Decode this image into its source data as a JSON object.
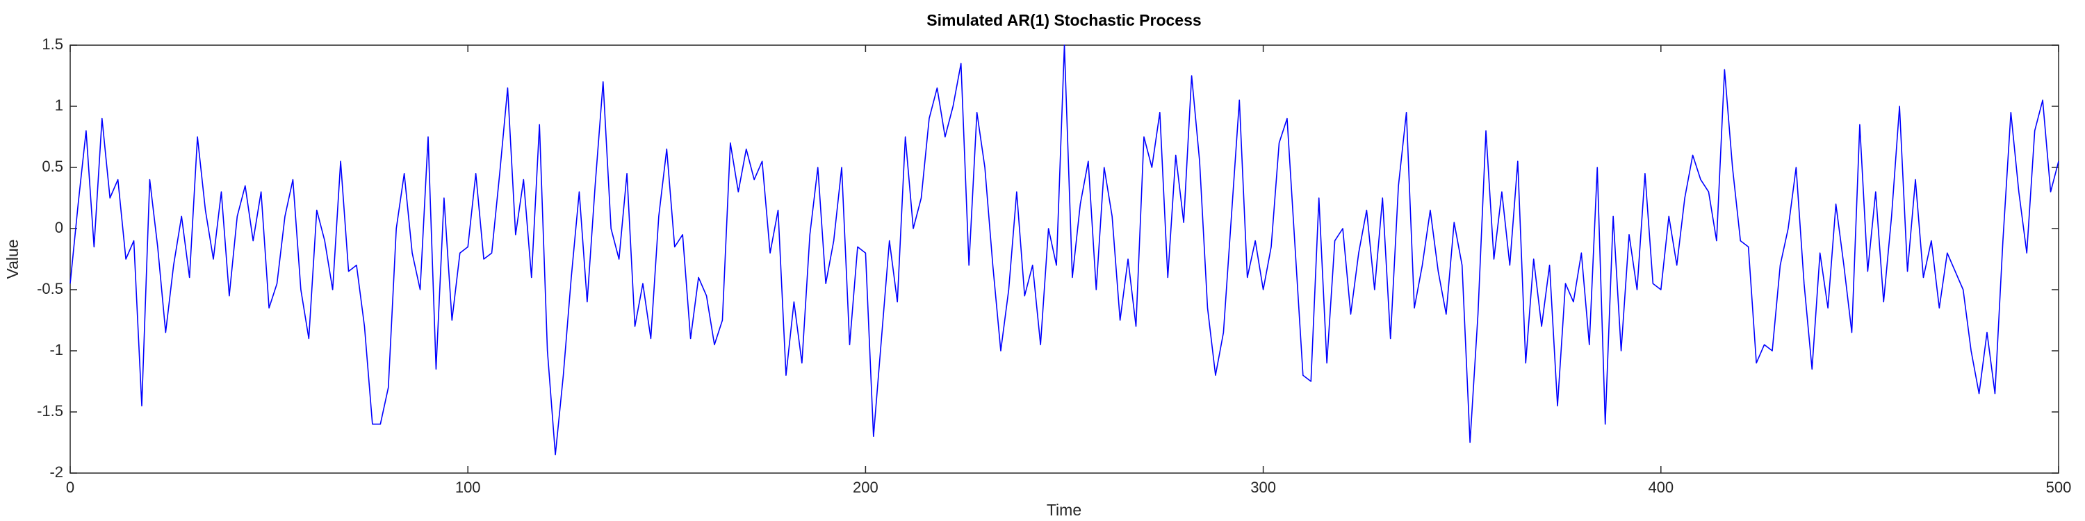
{
  "chart_data": {
    "type": "line",
    "title": "Simulated AR(1) Stochastic Process",
    "xlabel": "Time",
    "ylabel": "Value",
    "color": "#0000ff",
    "grid": false,
    "xlim": [
      0,
      500
    ],
    "ylim": [
      -2,
      1.5
    ],
    "xticks": [
      0,
      100,
      200,
      300,
      400,
      500
    ],
    "yticks": [
      -2,
      -1.5,
      -1,
      -0.5,
      0,
      0.5,
      1,
      1.5
    ],
    "x": [
      0,
      2,
      4,
      6,
      8,
      10,
      12,
      14,
      16,
      18,
      20,
      22,
      24,
      26,
      28,
      30,
      32,
      34,
      36,
      38,
      40,
      42,
      44,
      46,
      48,
      50,
      52,
      54,
      56,
      58,
      60,
      62,
      64,
      66,
      68,
      70,
      72,
      74,
      76,
      78,
      80,
      82,
      84,
      86,
      88,
      90,
      92,
      94,
      96,
      98,
      100,
      102,
      104,
      106,
      108,
      110,
      112,
      114,
      116,
      118,
      120,
      122,
      124,
      126,
      128,
      130,
      132,
      134,
      136,
      138,
      140,
      142,
      144,
      146,
      148,
      150,
      152,
      154,
      156,
      158,
      160,
      162,
      164,
      166,
      168,
      170,
      172,
      174,
      176,
      178,
      180,
      182,
      184,
      186,
      188,
      190,
      192,
      194,
      196,
      198,
      200,
      202,
      204,
      206,
      208,
      210,
      212,
      214,
      216,
      218,
      220,
      222,
      224,
      226,
      228,
      230,
      232,
      234,
      236,
      238,
      240,
      242,
      244,
      246,
      248,
      250,
      252,
      254,
      256,
      258,
      260,
      262,
      264,
      266,
      268,
      270,
      272,
      274,
      276,
      278,
      280,
      282,
      284,
      286,
      288,
      290,
      292,
      294,
      296,
      298,
      300,
      302,
      304,
      306,
      308,
      310,
      312,
      314,
      316,
      318,
      320,
      322,
      324,
      326,
      328,
      330,
      332,
      334,
      336,
      338,
      340,
      342,
      344,
      346,
      348,
      350,
      352,
      354,
      356,
      358,
      360,
      362,
      364,
      366,
      368,
      370,
      372,
      374,
      376,
      378,
      380,
      382,
      384,
      386,
      388,
      390,
      392,
      394,
      396,
      398,
      400,
      402,
      404,
      406,
      408,
      410,
      412,
      414,
      416,
      418,
      420,
      422,
      424,
      426,
      428,
      430,
      432,
      434,
      436,
      438,
      440,
      442,
      444,
      446,
      448,
      450,
      452,
      454,
      456,
      458,
      460,
      462,
      464,
      466,
      468,
      470,
      472,
      474,
      476,
      478,
      480,
      482,
      484,
      486,
      488,
      490,
      492,
      494,
      496,
      498,
      500
    ],
    "values": [
      -0.45,
      0.2,
      0.8,
      -0.15,
      0.9,
      0.25,
      0.4,
      -0.25,
      -0.1,
      -1.45,
      0.4,
      -0.15,
      -0.85,
      -0.3,
      0.1,
      -0.4,
      0.75,
      0.15,
      -0.25,
      0.3,
      -0.55,
      0.1,
      0.35,
      -0.1,
      0.3,
      -0.65,
      -0.45,
      0.1,
      0.4,
      -0.5,
      -0.9,
      0.15,
      -0.1,
      -0.5,
      0.55,
      -0.35,
      -0.3,
      -0.8,
      -1.6,
      -1.6,
      -1.3,
      0.0,
      0.45,
      -0.2,
      -0.5,
      0.75,
      -1.15,
      0.25,
      -0.75,
      -0.2,
      -0.15,
      0.45,
      -0.25,
      -0.2,
      0.45,
      1.15,
      -0.05,
      0.4,
      -0.4,
      0.85,
      -1.0,
      -1.85,
      -1.2,
      -0.4,
      0.3,
      -0.6,
      0.35,
      1.2,
      0.0,
      -0.25,
      0.45,
      -0.8,
      -0.45,
      -0.9,
      0.1,
      0.65,
      -0.15,
      -0.05,
      -0.9,
      -0.4,
      -0.55,
      -0.95,
      -0.75,
      0.7,
      0.3,
      0.65,
      0.4,
      0.55,
      -0.2,
      0.15,
      -1.2,
      -0.6,
      -1.1,
      -0.05,
      0.5,
      -0.45,
      -0.1,
      0.5,
      -0.95,
      -0.15,
      -0.2,
      -1.7,
      -0.9,
      -0.1,
      -0.6,
      0.75,
      0.0,
      0.25,
      0.9,
      1.15,
      0.75,
      1.0,
      1.35,
      -0.3,
      0.95,
      0.5,
      -0.3,
      -1.0,
      -0.5,
      0.3,
      -0.55,
      -0.3,
      -0.95,
      0.0,
      -0.3,
      1.5,
      -0.4,
      0.2,
      0.55,
      -0.5,
      0.5,
      0.1,
      -0.75,
      -0.25,
      -0.8,
      0.75,
      0.5,
      0.95,
      -0.4,
      0.6,
      0.05,
      1.25,
      0.55,
      -0.65,
      -1.2,
      -0.85,
      0.1,
      1.05,
      -0.4,
      -0.1,
      -0.5,
      -0.15,
      0.7,
      0.9,
      -0.15,
      -1.2,
      -1.25,
      0.25,
      -1.1,
      -0.1,
      0.0,
      -0.7,
      -0.2,
      0.15,
      -0.5,
      0.25,
      -0.9,
      0.35,
      0.95,
      -0.65,
      -0.3,
      0.15,
      -0.35,
      -0.7,
      0.05,
      -0.3,
      -1.75,
      -0.7,
      0.8,
      -0.25,
      0.3,
      -0.3,
      0.55,
      -1.1,
      -0.25,
      -0.8,
      -0.3,
      -1.45,
      -0.45,
      -0.6,
      -0.2,
      -0.95,
      0.5,
      -1.6,
      0.1,
      -1.0,
      -0.05,
      -0.5,
      0.45,
      -0.45,
      -0.5,
      0.1,
      -0.3,
      0.25,
      0.6,
      0.4,
      0.3,
      -0.1,
      1.3,
      0.5,
      -0.1,
      -0.15,
      -1.1,
      -0.95,
      -1.0,
      -0.3,
      0.0,
      0.5,
      -0.45,
      -1.15,
      -0.2,
      -0.65,
      0.2,
      -0.3,
      -0.85,
      0.85,
      -0.35,
      0.3,
      -0.6,
      0.1,
      1.0,
      -0.35,
      0.4,
      -0.4,
      -0.1,
      -0.65,
      -0.2,
      -0.35,
      -0.5,
      -1.0,
      -1.35,
      -0.85,
      -1.35,
      -0.1,
      0.95,
      0.3,
      -0.2,
      0.8,
      1.05,
      0.3,
      0.55
    ]
  }
}
